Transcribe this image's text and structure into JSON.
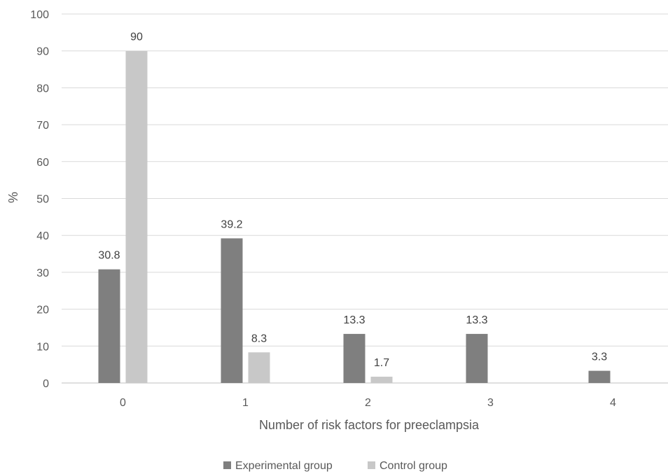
{
  "chart_data": {
    "type": "bar",
    "title": "",
    "xlabel": "Number of risk factors for preeclampsia",
    "ylabel": "%",
    "categories": [
      "0",
      "1",
      "2",
      "3",
      "4"
    ],
    "ylim": [
      0,
      100
    ],
    "yticks": [
      "0",
      "10",
      "20",
      "30",
      "40",
      "50",
      "60",
      "70",
      "80",
      "90",
      "100"
    ],
    "grid": true,
    "legend_position": "bottom",
    "series": [
      {
        "name": "Experimental group",
        "color": "#7f7f7f",
        "values": [
          30.8,
          39.2,
          13.3,
          13.3,
          3.3
        ],
        "labels": [
          "30.8",
          "39.2",
          "13.3",
          "13.3",
          "3.3"
        ]
      },
      {
        "name": "Control group",
        "color": "#c8c8c8",
        "values": [
          90,
          8.3,
          1.7,
          null,
          null
        ],
        "labels": [
          "90",
          "8.3",
          "1.7",
          null,
          null
        ]
      }
    ]
  }
}
